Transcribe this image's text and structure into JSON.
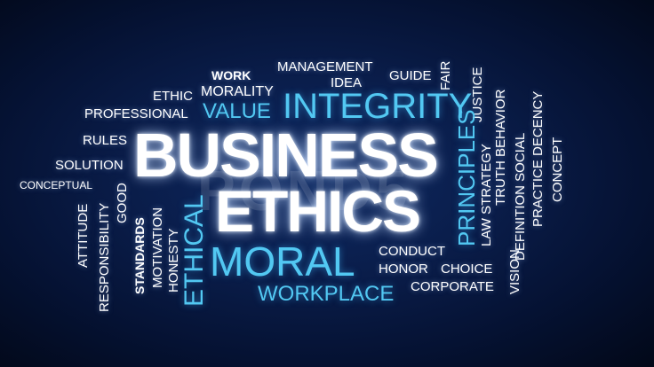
{
  "colors": {
    "background": "#0a1d4a",
    "white_text": "#ffffff",
    "blue_text": "#52c8f2"
  },
  "hero": {
    "business": "BUSINESS",
    "ethics": "ETHICS"
  },
  "watermark": "POND5",
  "words": {
    "work": "WORK",
    "management": "MANAGEMENT",
    "guide": "GUIDE",
    "fair": "FAIR",
    "justice": "JUSTICE",
    "idea": "IDEA",
    "ethic": "ETHIC",
    "morality": "MORALITY",
    "professional": "PROFESSIONAL",
    "value": "VALUE",
    "integrity": "INTEGRITY",
    "rules": "RULES",
    "solution": "SOLUTION",
    "conceptual": "CONCEPTUAL",
    "good": "GOOD",
    "attitude": "ATTITUDE",
    "responsibility": "RESPONSIBILITY",
    "standards": "STANDARDS",
    "motivation": "MOTIVATION",
    "honesty": "HONESTY",
    "ethical": "ETHICAL",
    "moral": "MORAL",
    "workplace": "WORKPLACE",
    "principles": "PRINCIPLES",
    "conduct": "CONDUCT",
    "honor": "HONOR",
    "choice": "CHOICE",
    "corporate": "CORPORATE",
    "law": "LAW",
    "strategy": "STRATEGY",
    "vision": "VISION",
    "truth": "TRUTH",
    "behavior": "BEHAVIOR",
    "definition": "DEFINITION",
    "social": "SOCIAL",
    "practice": "PRACTICE",
    "decency": "DECENCY",
    "concept": "CONCEPT"
  }
}
